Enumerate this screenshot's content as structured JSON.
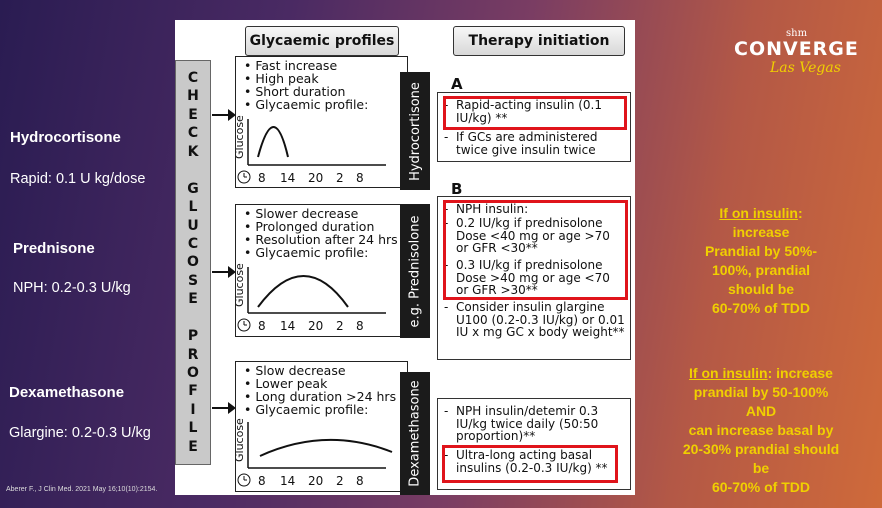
{
  "left_labels": {
    "hydrocortisone_title": "Hydrocortisone",
    "hydrocortisone_dose": "Rapid: 0.1 U kg/dose",
    "prednisone_title": "Prednisone",
    "prednisone_dose": "NPH: 0.2-0.3 U/kg",
    "dexamethasone_title": "Dexamethasone",
    "dexamethasone_dose": "Glargine: 0.2-0.3 U/kg",
    "citation": "Aberer F., J Clin Med. 2021 May 16;10(10):2154."
  },
  "logo": {
    "shm": "shm",
    "converge": "CONVERGE",
    "las_vegas": "Las Vegas"
  },
  "figure": {
    "header_profiles": "Glycaemic profiles",
    "header_therapy": "Therapy initiation",
    "check_letters": [
      "C",
      "H",
      "E",
      "C",
      "K",
      "",
      "G",
      "L",
      "U",
      "C",
      "O",
      "S",
      "E",
      "",
      "P",
      "R",
      "O",
      "F",
      "I",
      "L",
      "E"
    ],
    "axis_label": "Glucose",
    "time_ticks": [
      "8",
      "14",
      "20",
      "2",
      "8"
    ],
    "profiles": [
      {
        "bullets": [
          "Fast increase",
          "High peak",
          "Short duration",
          "Glycaemic profile:"
        ],
        "drug": "Hydrocortisone"
      },
      {
        "bullets": [
          "Slower decrease",
          "Prolonged duration",
          "Resolution after 24 hrs",
          "Glycaemic profile:"
        ],
        "drug": "e.g. Prednisolone"
      },
      {
        "bullets": [
          "Slow decrease",
          "Lower peak",
          "Long duration >24 hrs",
          "Glycaemic profile:"
        ],
        "drug": "Dexamethasone"
      }
    ],
    "section_a": "A",
    "section_b": "B",
    "therapy_a": [
      "Rapid-acting insulin (0.1 IU/kg) **",
      "If GCs are administered twice give insulin twice"
    ],
    "therapy_b": [
      "NPH insulin:",
      "0.2 IU/kg if prednisolone Dose <40 mg  or age >70 or GFR <30**",
      "0.3 IU/kg if prednisolone Dose >40 mg  or age <70 or GFR >30**",
      "Consider insulin glargine U100 (0.2-0.3 IU/kg) or 0.01 IU x mg GC x body weight**"
    ],
    "therapy_c": [
      "NPH insulin/detemir 0.3 IU/kg twice daily (50:50 proportion)**",
      "Ultra-long acting basal insulins (0.2-0.3 IU/kg) **"
    ]
  },
  "right_notes": {
    "note1_heading": "If on insulin",
    "note1_colon": ":",
    "note1_lines": [
      "increase",
      "Prandial by 50%-",
      "100%, prandial",
      "should be",
      "60-70% of TDD"
    ],
    "note2_heading": "If on insulin",
    "note2_first_rest": ": increase",
    "note2_lines": [
      "prandial by 50-100%",
      "AND",
      "can increase basal by",
      "20-30% prandial should",
      "be",
      "60-70% of TDD"
    ]
  },
  "colors": {
    "highlight_yellow": "#f0d000",
    "red_box": "#e0141b"
  }
}
